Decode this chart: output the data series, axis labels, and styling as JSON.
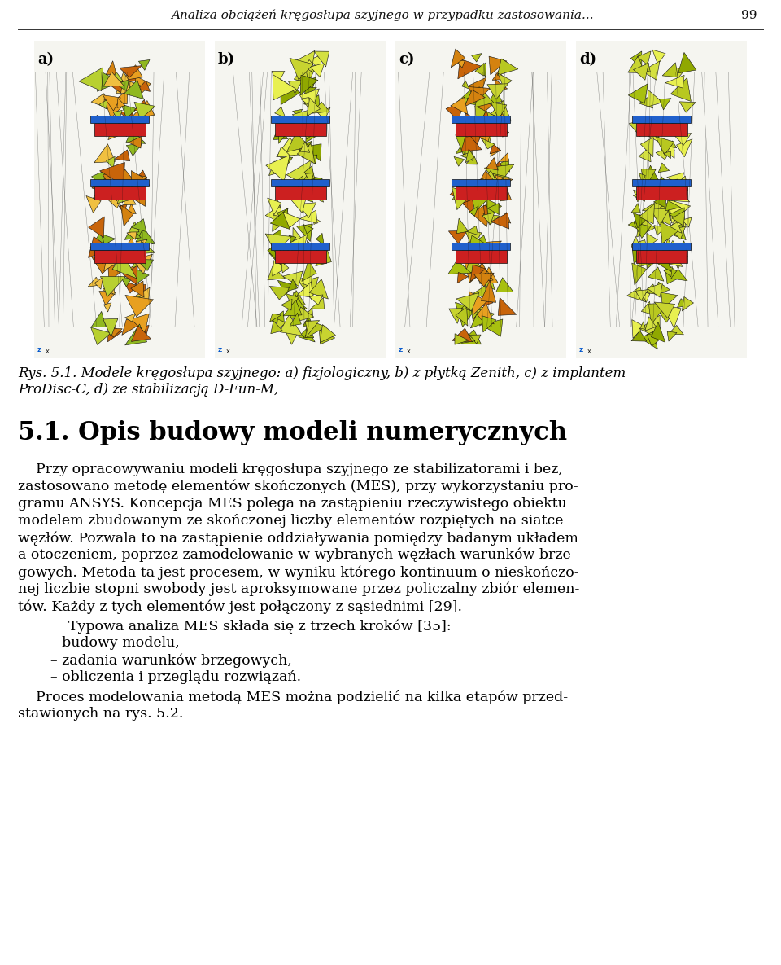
{
  "header_text": "Analiza obciążeń kręgosłupa szyjnego w przypadku zastosowania...",
  "header_page": "99",
  "fig_caption_line1": "Rys. 5.1. Modele kręgosłupa szyjnego: a) fizjologiczny, b) z płytką Zenith, c) z implantem",
  "fig_caption_line2": "ProDisc-C, d) ze stabilizacją D-Fun-M,",
  "section_title": "5.1. Opis budowy modeli numerycznych",
  "para1_lines": [
    "    Przy opracowywaniu modeli kręgosłupa szyjnego ze stabilizatorami i bez,",
    "zastosowano metodę elementów skończonych (MES), przy wykorzystaniu pro-",
    "gramu ANSYS. Koncepcja MES polega na zastąpieniu rzeczywistego obiektu",
    "modelem zbudowanym ze skończonej liczby elementów rozpiętych na siatce",
    "węzłów. Pozwala to na zastąpienie oddziaływania pomiędzy badanym układem",
    "a otoczeniem, poprzez zamodelowanie w wybranych węzłach warunków brze-",
    "gowych. Metoda ta jest procesem, w wyniku którego kontinuum o nieskończo-",
    "nej liczbie stopni swobody jest aproksymowane przez policzalny zbiór elemen-",
    "tów. Każdy z tych elementów jest połączony z sąsiednimi [29]."
  ],
  "para2": "    Typowa analiza MES składa się z trzech kroków [35]:",
  "list_items": [
    "– budowy modelu,",
    "– zadania warunków brzegowych,",
    "– obliczenia i przeglądu rozwiązań."
  ],
  "para3_lines": [
    "    Proces modelowania metodą MES można podzielić na kilka etapów przed-",
    "stawionych na rys. 5.2."
  ],
  "background_color": "#ffffff",
  "text_color": "#000000",
  "image_labels": [
    "a)",
    "b)",
    "c)",
    "d)"
  ],
  "header_fontsize": 11,
  "section_title_fontsize": 22,
  "body_fontsize": 12.5,
  "caption_fontsize": 12
}
